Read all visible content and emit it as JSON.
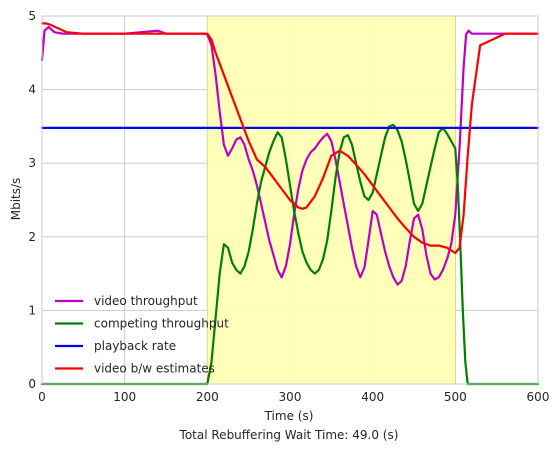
{
  "chart_data": {
    "type": "line",
    "xlabel": "Time (s)",
    "ylabel": "Mbits/s",
    "caption": "Total Rebuffering Wait Time:  49.0 (s)",
    "xlim": [
      0,
      600
    ],
    "ylim": [
      0,
      5
    ],
    "x_ticks": [
      0,
      100,
      200,
      300,
      400,
      500,
      600
    ],
    "y_ticks": [
      0,
      1,
      2,
      3,
      4,
      5
    ],
    "grid": true,
    "legend_position": "lower-left",
    "highlight_region": {
      "x_start": 200,
      "x_end": 500,
      "color": "#ffffb3"
    },
    "series": [
      {
        "name": "video throughput",
        "color": "#c000c0",
        "x": [
          0,
          3,
          8,
          15,
          25,
          50,
          100,
          140,
          150,
          195,
          200,
          205,
          210,
          215,
          220,
          225,
          230,
          235,
          240,
          245,
          250,
          255,
          260,
          265,
          270,
          275,
          280,
          285,
          290,
          295,
          300,
          305,
          310,
          315,
          320,
          325,
          330,
          335,
          340,
          345,
          350,
          355,
          360,
          365,
          370,
          375,
          380,
          385,
          390,
          395,
          400,
          405,
          410,
          415,
          420,
          425,
          430,
          435,
          440,
          445,
          450,
          455,
          460,
          465,
          470,
          475,
          480,
          485,
          490,
          495,
          500,
          505,
          510,
          513,
          516,
          520,
          530,
          560,
          600
        ],
        "y": [
          4.4,
          4.8,
          4.85,
          4.78,
          4.76,
          4.76,
          4.76,
          4.8,
          4.76,
          4.76,
          4.75,
          4.6,
          4.2,
          3.7,
          3.25,
          3.1,
          3.2,
          3.32,
          3.35,
          3.25,
          3.05,
          2.9,
          2.7,
          2.45,
          2.2,
          1.95,
          1.75,
          1.55,
          1.45,
          1.6,
          1.9,
          2.3,
          2.65,
          2.9,
          3.05,
          3.15,
          3.2,
          3.28,
          3.35,
          3.4,
          3.3,
          3.05,
          2.75,
          2.45,
          2.15,
          1.85,
          1.6,
          1.45,
          1.58,
          1.95,
          2.35,
          2.3,
          2.05,
          1.8,
          1.6,
          1.45,
          1.35,
          1.4,
          1.6,
          1.95,
          2.25,
          2.3,
          2.1,
          1.75,
          1.5,
          1.42,
          1.45,
          1.55,
          1.7,
          1.9,
          2.3,
          3.2,
          4.3,
          4.75,
          4.8,
          4.76,
          4.76,
          4.76,
          4.76
        ]
      },
      {
        "name": "competing throughput",
        "color": "#008000",
        "x": [
          0,
          195,
          200,
          205,
          210,
          215,
          220,
          225,
          230,
          235,
          240,
          245,
          250,
          255,
          260,
          265,
          270,
          275,
          280,
          285,
          290,
          295,
          300,
          305,
          310,
          315,
          320,
          325,
          330,
          335,
          340,
          345,
          350,
          355,
          360,
          365,
          370,
          375,
          380,
          385,
          390,
          395,
          400,
          405,
          410,
          415,
          420,
          425,
          430,
          435,
          440,
          445,
          450,
          455,
          460,
          465,
          470,
          475,
          480,
          485,
          490,
          495,
          500,
          503,
          506,
          509,
          512,
          515,
          600
        ],
        "y": [
          0,
          0,
          0,
          0.3,
          0.9,
          1.5,
          1.9,
          1.85,
          1.65,
          1.55,
          1.5,
          1.6,
          1.8,
          2.1,
          2.45,
          2.75,
          2.95,
          3.15,
          3.3,
          3.42,
          3.35,
          3.05,
          2.7,
          2.35,
          2.05,
          1.8,
          1.65,
          1.55,
          1.5,
          1.55,
          1.7,
          1.95,
          2.35,
          2.8,
          3.15,
          3.35,
          3.38,
          3.25,
          3.0,
          2.75,
          2.55,
          2.5,
          2.6,
          2.85,
          3.1,
          3.35,
          3.5,
          3.52,
          3.45,
          3.3,
          3.05,
          2.75,
          2.45,
          2.35,
          2.45,
          2.7,
          2.95,
          3.2,
          3.42,
          3.48,
          3.4,
          3.3,
          3.2,
          2.7,
          1.9,
          1.0,
          0.3,
          0,
          0
        ]
      },
      {
        "name": "playback rate",
        "color": "#0000ff",
        "x": [
          0,
          600
        ],
        "y": [
          3.48,
          3.48
        ]
      },
      {
        "name": "video b/w estimates",
        "color": "#ff0000",
        "x": [
          0,
          5,
          10,
          20,
          30,
          50,
          100,
          150,
          200,
          205,
          210,
          220,
          230,
          240,
          250,
          260,
          270,
          280,
          290,
          300,
          310,
          315,
          320,
          330,
          340,
          350,
          360,
          370,
          380,
          390,
          400,
          410,
          420,
          430,
          440,
          450,
          460,
          470,
          480,
          490,
          500,
          505,
          510,
          515,
          520,
          530,
          560,
          600
        ],
        "y": [
          4.9,
          4.9,
          4.88,
          4.83,
          4.78,
          4.76,
          4.76,
          4.76,
          4.76,
          4.68,
          4.5,
          4.2,
          3.9,
          3.6,
          3.3,
          3.05,
          2.95,
          2.8,
          2.65,
          2.5,
          2.4,
          2.38,
          2.4,
          2.55,
          2.8,
          3.1,
          3.17,
          3.1,
          2.98,
          2.85,
          2.7,
          2.55,
          2.4,
          2.25,
          2.12,
          2.0,
          1.92,
          1.88,
          1.88,
          1.85,
          1.78,
          1.85,
          2.3,
          3.1,
          3.8,
          4.6,
          4.76,
          4.76
        ]
      }
    ]
  }
}
